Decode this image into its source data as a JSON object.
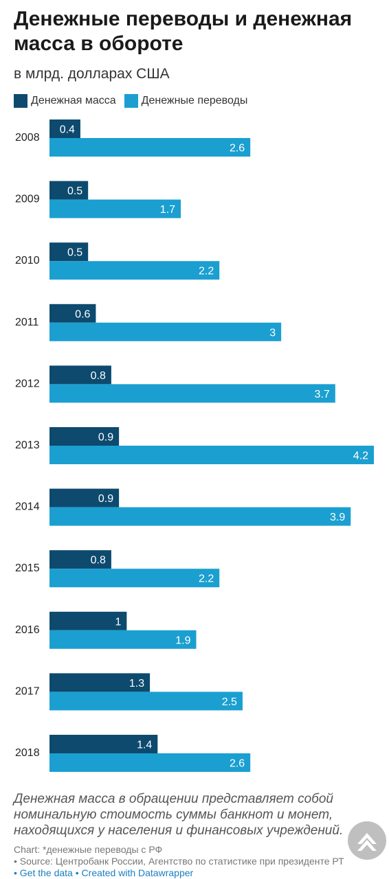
{
  "header": {
    "title": "Денежные переводы и денежная масса в обороте",
    "subtitle": "в млрд. долларах США"
  },
  "colors": {
    "money_supply": "#0d4a6e",
    "remittances": "#1b9fd0"
  },
  "chart_data": {
    "type": "bar",
    "orientation": "horizontal",
    "categories": [
      "2008",
      "2009",
      "2010",
      "2011",
      "2012",
      "2013",
      "2014",
      "2015",
      "2016",
      "2017",
      "2018"
    ],
    "series": [
      {
        "name": "Денежная масса",
        "values": [
          0.4,
          0.5,
          0.5,
          0.6,
          0.8,
          0.9,
          0.9,
          0.8,
          1,
          1.3,
          1.4
        ],
        "labels": [
          "0.4",
          "0.5",
          "0.5",
          "0.6",
          "0.8",
          "0.9",
          "0.9",
          "0.8",
          "1",
          "1.3",
          "1.4"
        ]
      },
      {
        "name": "Денежные переводы",
        "values": [
          2.6,
          1.7,
          2.2,
          3,
          3.7,
          4.2,
          3.9,
          2.2,
          1.9,
          2.5,
          2.6
        ],
        "labels": [
          "2.6",
          "1.7",
          "2.2",
          "3",
          "3.7",
          "4.2",
          "3.9",
          "2.2",
          "1.9",
          "2.5",
          "2.6"
        ]
      }
    ],
    "xlim": [
      0,
      4.2
    ],
    "legend_position": "top-left",
    "grid": false
  },
  "note": "Денежная масса в обращении представляет собой номинальную стоимость суммы банкнот и монет, находящихся у населения и финансовых учреждений.",
  "footer": {
    "chart_note": "Chart: *денежные переводы с РФ",
    "source": "• Source: Центробанк России, Агентство по статистике при президенте РТ",
    "get_data": "• Get the data",
    "created_with": "• Created with Datawrapper"
  },
  "scroll_top_icon": "chevron-up-icon"
}
